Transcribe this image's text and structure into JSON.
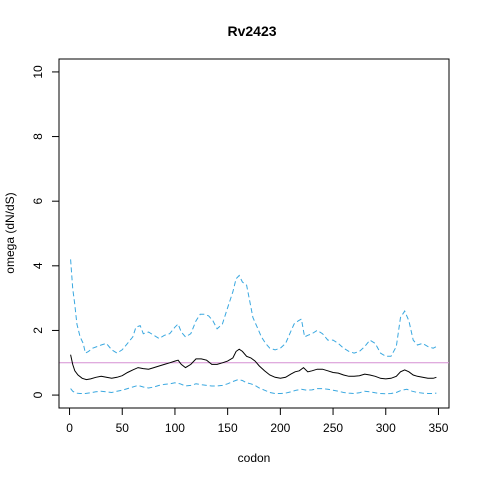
{
  "chart_data": {
    "type": "line",
    "title": "Rv2423",
    "xlabel": "codon",
    "ylabel": "omega (dN/dS)",
    "xlim": [
      -10,
      360
    ],
    "ylim": [
      -0.4,
      10.4
    ],
    "x_ticks": [
      0,
      50,
      100,
      150,
      200,
      250,
      300,
      350
    ],
    "y_ticks": [
      0,
      2,
      4,
      6,
      8,
      10
    ],
    "reference_line": {
      "y": 1,
      "color": "#d58fd3"
    },
    "grid": false,
    "legend": "none",
    "series": [
      {
        "style": "solid",
        "color": "#000000",
        "points": [
          [
            1,
            1.25
          ],
          [
            3,
            0.95
          ],
          [
            5,
            0.75
          ],
          [
            8,
            0.62
          ],
          [
            12,
            0.52
          ],
          [
            16,
            0.48
          ],
          [
            20,
            0.5
          ],
          [
            25,
            0.55
          ],
          [
            30,
            0.58
          ],
          [
            35,
            0.55
          ],
          [
            40,
            0.52
          ],
          [
            45,
            0.55
          ],
          [
            50,
            0.6
          ],
          [
            55,
            0.7
          ],
          [
            60,
            0.78
          ],
          [
            65,
            0.85
          ],
          [
            70,
            0.82
          ],
          [
            75,
            0.8
          ],
          [
            80,
            0.85
          ],
          [
            85,
            0.9
          ],
          [
            90,
            0.95
          ],
          [
            95,
            1.0
          ],
          [
            100,
            1.05
          ],
          [
            103,
            1.08
          ],
          [
            106,
            0.95
          ],
          [
            110,
            0.85
          ],
          [
            115,
            0.95
          ],
          [
            120,
            1.12
          ],
          [
            125,
            1.12
          ],
          [
            130,
            1.08
          ],
          [
            135,
            0.95
          ],
          [
            140,
            0.95
          ],
          [
            145,
            1.0
          ],
          [
            150,
            1.05
          ],
          [
            155,
            1.15
          ],
          [
            158,
            1.35
          ],
          [
            161,
            1.42
          ],
          [
            164,
            1.35
          ],
          [
            168,
            1.2
          ],
          [
            172,
            1.15
          ],
          [
            176,
            1.05
          ],
          [
            180,
            0.9
          ],
          [
            185,
            0.75
          ],
          [
            190,
            0.62
          ],
          [
            195,
            0.55
          ],
          [
            200,
            0.52
          ],
          [
            205,
            0.55
          ],
          [
            210,
            0.65
          ],
          [
            214,
            0.72
          ],
          [
            218,
            0.75
          ],
          [
            222,
            0.85
          ],
          [
            226,
            0.72
          ],
          [
            230,
            0.75
          ],
          [
            235,
            0.8
          ],
          [
            240,
            0.8
          ],
          [
            245,
            0.75
          ],
          [
            250,
            0.7
          ],
          [
            255,
            0.68
          ],
          [
            260,
            0.62
          ],
          [
            265,
            0.58
          ],
          [
            270,
            0.58
          ],
          [
            275,
            0.6
          ],
          [
            280,
            0.65
          ],
          [
            285,
            0.62
          ],
          [
            290,
            0.58
          ],
          [
            295,
            0.52
          ],
          [
            300,
            0.5
          ],
          [
            305,
            0.52
          ],
          [
            310,
            0.58
          ],
          [
            314,
            0.72
          ],
          [
            318,
            0.78
          ],
          [
            322,
            0.72
          ],
          [
            326,
            0.62
          ],
          [
            330,
            0.58
          ],
          [
            335,
            0.55
          ],
          [
            340,
            0.52
          ],
          [
            345,
            0.52
          ],
          [
            348,
            0.55
          ]
        ]
      },
      {
        "style": "dashed",
        "color": "#3aa8e0",
        "points": [
          [
            1,
            4.2
          ],
          [
            3,
            3.3
          ],
          [
            5,
            2.8
          ],
          [
            7,
            2.2
          ],
          [
            10,
            1.8
          ],
          [
            13,
            1.6
          ],
          [
            15,
            1.3
          ],
          [
            18,
            1.35
          ],
          [
            22,
            1.45
          ],
          [
            26,
            1.5
          ],
          [
            30,
            1.55
          ],
          [
            35,
            1.6
          ],
          [
            40,
            1.4
          ],
          [
            45,
            1.3
          ],
          [
            50,
            1.4
          ],
          [
            55,
            1.6
          ],
          [
            60,
            1.8
          ],
          [
            63,
            2.1
          ],
          [
            67,
            2.15
          ],
          [
            70,
            1.9
          ],
          [
            75,
            1.95
          ],
          [
            80,
            1.85
          ],
          [
            85,
            1.75
          ],
          [
            90,
            1.85
          ],
          [
            95,
            1.9
          ],
          [
            100,
            2.1
          ],
          [
            103,
            2.2
          ],
          [
            106,
            1.95
          ],
          [
            110,
            1.8
          ],
          [
            115,
            1.9
          ],
          [
            120,
            2.3
          ],
          [
            124,
            2.5
          ],
          [
            128,
            2.5
          ],
          [
            132,
            2.45
          ],
          [
            136,
            2.3
          ],
          [
            140,
            2.05
          ],
          [
            145,
            2.2
          ],
          [
            150,
            2.7
          ],
          [
            155,
            3.2
          ],
          [
            158,
            3.6
          ],
          [
            161,
            3.7
          ],
          [
            164,
            3.5
          ],
          [
            168,
            3.4
          ],
          [
            171,
            2.9
          ],
          [
            174,
            2.4
          ],
          [
            178,
            2.1
          ],
          [
            182,
            1.8
          ],
          [
            186,
            1.6
          ],
          [
            190,
            1.45
          ],
          [
            195,
            1.4
          ],
          [
            200,
            1.45
          ],
          [
            205,
            1.6
          ],
          [
            209,
            1.9
          ],
          [
            213,
            2.2
          ],
          [
            217,
            2.3
          ],
          [
            220,
            2.35
          ],
          [
            223,
            1.8
          ],
          [
            226,
            1.85
          ],
          [
            230,
            1.9
          ],
          [
            235,
            2.0
          ],
          [
            240,
            1.9
          ],
          [
            245,
            1.7
          ],
          [
            250,
            1.7
          ],
          [
            255,
            1.6
          ],
          [
            260,
            1.45
          ],
          [
            265,
            1.35
          ],
          [
            270,
            1.3
          ],
          [
            275,
            1.35
          ],
          [
            280,
            1.5
          ],
          [
            285,
            1.7
          ],
          [
            290,
            1.6
          ],
          [
            295,
            1.3
          ],
          [
            300,
            1.2
          ],
          [
            305,
            1.2
          ],
          [
            310,
            1.5
          ],
          [
            314,
            2.4
          ],
          [
            318,
            2.6
          ],
          [
            322,
            2.3
          ],
          [
            326,
            1.7
          ],
          [
            330,
            1.55
          ],
          [
            335,
            1.6
          ],
          [
            340,
            1.5
          ],
          [
            345,
            1.45
          ],
          [
            348,
            1.5
          ]
        ]
      },
      {
        "style": "dashed",
        "color": "#3aa8e0",
        "points": [
          [
            1,
            0.2
          ],
          [
            3,
            0.12
          ],
          [
            6,
            0.06
          ],
          [
            10,
            0.05
          ],
          [
            15,
            0.05
          ],
          [
            20,
            0.07
          ],
          [
            25,
            0.1
          ],
          [
            30,
            0.12
          ],
          [
            35,
            0.1
          ],
          [
            40,
            0.08
          ],
          [
            45,
            0.12
          ],
          [
            50,
            0.15
          ],
          [
            55,
            0.2
          ],
          [
            60,
            0.25
          ],
          [
            65,
            0.3
          ],
          [
            70,
            0.25
          ],
          [
            75,
            0.22
          ],
          [
            80,
            0.25
          ],
          [
            85,
            0.3
          ],
          [
            90,
            0.33
          ],
          [
            95,
            0.35
          ],
          [
            100,
            0.38
          ],
          [
            105,
            0.35
          ],
          [
            110,
            0.28
          ],
          [
            115,
            0.3
          ],
          [
            120,
            0.35
          ],
          [
            125,
            0.32
          ],
          [
            130,
            0.3
          ],
          [
            135,
            0.28
          ],
          [
            140,
            0.28
          ],
          [
            145,
            0.3
          ],
          [
            150,
            0.35
          ],
          [
            155,
            0.42
          ],
          [
            160,
            0.48
          ],
          [
            164,
            0.45
          ],
          [
            168,
            0.38
          ],
          [
            172,
            0.35
          ],
          [
            176,
            0.3
          ],
          [
            180,
            0.22
          ],
          [
            185,
            0.15
          ],
          [
            190,
            0.08
          ],
          [
            195,
            0.05
          ],
          [
            200,
            0.05
          ],
          [
            205,
            0.06
          ],
          [
            210,
            0.1
          ],
          [
            215,
            0.15
          ],
          [
            220,
            0.18
          ],
          [
            225,
            0.15
          ],
          [
            230,
            0.16
          ],
          [
            235,
            0.2
          ],
          [
            240,
            0.2
          ],
          [
            245,
            0.18
          ],
          [
            250,
            0.15
          ],
          [
            255,
            0.12
          ],
          [
            260,
            0.08
          ],
          [
            265,
            0.06
          ],
          [
            270,
            0.05
          ],
          [
            275,
            0.07
          ],
          [
            280,
            0.12
          ],
          [
            285,
            0.1
          ],
          [
            290,
            0.07
          ],
          [
            295,
            0.05
          ],
          [
            300,
            0.04
          ],
          [
            305,
            0.05
          ],
          [
            310,
            0.08
          ],
          [
            315,
            0.15
          ],
          [
            320,
            0.18
          ],
          [
            325,
            0.12
          ],
          [
            330,
            0.08
          ],
          [
            335,
            0.06
          ],
          [
            340,
            0.05
          ],
          [
            345,
            0.05
          ],
          [
            348,
            0.06
          ]
        ]
      }
    ]
  }
}
